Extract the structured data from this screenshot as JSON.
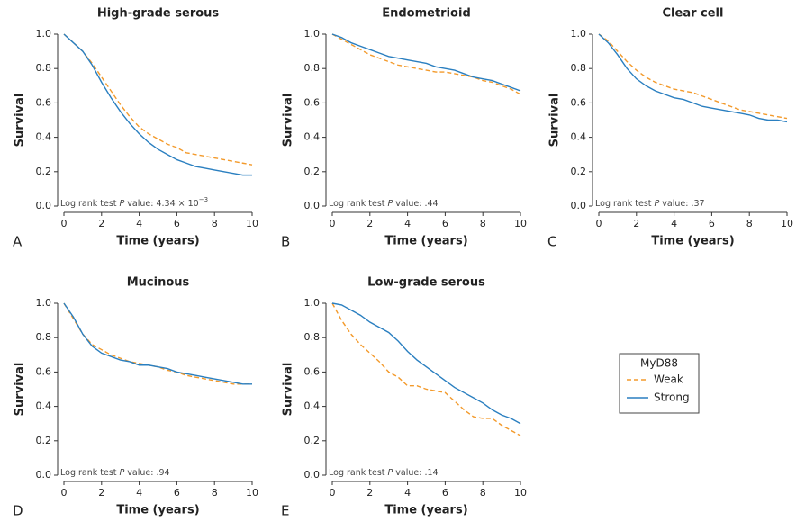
{
  "chart_data": [
    {
      "type": "line",
      "panel": "A",
      "title": "High-grade serous",
      "xlabel": "Time (years)",
      "ylabel": "Survival",
      "annotation": [
        {
          "text": "Log rank test "
        },
        {
          "text": "P",
          "italic": true
        },
        {
          "text": " value: 4.34 × 10"
        },
        {
          "text": "−3",
          "superscript": true
        }
      ],
      "x": [
        0,
        0.5,
        1,
        1.5,
        2,
        2.5,
        3,
        3.5,
        4,
        4.5,
        5,
        5.5,
        6,
        6.5,
        7,
        7.5,
        8,
        8.5,
        9,
        9.5,
        10
      ],
      "series": [
        {
          "name": "Weak",
          "color": "#f39a2b",
          "dash": true,
          "values": [
            1.0,
            0.95,
            0.9,
            0.83,
            0.75,
            0.67,
            0.59,
            0.52,
            0.46,
            0.42,
            0.39,
            0.36,
            0.34,
            0.31,
            0.3,
            0.29,
            0.28,
            0.27,
            0.26,
            0.25,
            0.24
          ]
        },
        {
          "name": "Strong",
          "color": "#2a7fc0",
          "dash": false,
          "values": [
            1.0,
            0.95,
            0.9,
            0.82,
            0.72,
            0.63,
            0.55,
            0.48,
            0.42,
            0.37,
            0.33,
            0.3,
            0.27,
            0.25,
            0.23,
            0.22,
            0.21,
            0.2,
            0.19,
            0.18,
            0.18
          ]
        }
      ],
      "xlim": [
        0,
        10
      ],
      "ylim": [
        0,
        1
      ],
      "xticks": [
        0,
        2,
        4,
        6,
        8,
        10
      ],
      "yticks": [
        {
          "value": 0,
          "label": "0.0"
        },
        0.2,
        0.4,
        0.6,
        0.8,
        {
          "value": 1,
          "label": "1.0"
        }
      ]
    },
    {
      "type": "line",
      "panel": "B",
      "title": "Endometrioid",
      "xlabel": "Time (years)",
      "ylabel": "Survival",
      "annotation": [
        {
          "text": "Log rank test "
        },
        {
          "text": "P",
          "italic": true
        },
        {
          "text": " value: .44"
        }
      ],
      "x": [
        0,
        0.5,
        1,
        1.5,
        2,
        2.5,
        3,
        3.5,
        4,
        4.5,
        5,
        5.5,
        6,
        6.5,
        7,
        7.5,
        8,
        8.5,
        9,
        9.5,
        10
      ],
      "series": [
        {
          "name": "Weak",
          "color": "#f39a2b",
          "dash": true,
          "values": [
            1.0,
            0.97,
            0.94,
            0.91,
            0.88,
            0.86,
            0.84,
            0.82,
            0.81,
            0.8,
            0.79,
            0.78,
            0.78,
            0.77,
            0.76,
            0.75,
            0.73,
            0.72,
            0.7,
            0.68,
            0.65
          ]
        },
        {
          "name": "Strong",
          "color": "#2a7fc0",
          "dash": false,
          "values": [
            1.0,
            0.98,
            0.95,
            0.93,
            0.91,
            0.89,
            0.87,
            0.86,
            0.85,
            0.84,
            0.83,
            0.81,
            0.8,
            0.79,
            0.77,
            0.75,
            0.74,
            0.73,
            0.71,
            0.69,
            0.67
          ]
        }
      ],
      "xlim": [
        0,
        10
      ],
      "ylim": [
        0,
        1
      ],
      "xticks": [
        0,
        2,
        4,
        6,
        8,
        10
      ],
      "yticks": [
        {
          "value": 0,
          "label": "0.0"
        },
        0.2,
        0.4,
        0.6,
        0.8,
        {
          "value": 1,
          "label": "1.0"
        }
      ]
    },
    {
      "type": "line",
      "panel": "C",
      "title": "Clear cell",
      "xlabel": "Time (years)",
      "ylabel": "Survival",
      "annotation": [
        {
          "text": "Log rank test "
        },
        {
          "text": "P",
          "italic": true
        },
        {
          "text": " value: .37"
        }
      ],
      "x": [
        0,
        0.5,
        1,
        1.5,
        2,
        2.5,
        3,
        3.5,
        4,
        4.5,
        5,
        5.5,
        6,
        6.5,
        7,
        7.5,
        8,
        8.5,
        9,
        9.5,
        10
      ],
      "series": [
        {
          "name": "Weak",
          "color": "#f39a2b",
          "dash": true,
          "values": [
            1.0,
            0.96,
            0.9,
            0.84,
            0.79,
            0.75,
            0.72,
            0.7,
            0.68,
            0.67,
            0.66,
            0.64,
            0.62,
            0.6,
            0.58,
            0.56,
            0.55,
            0.54,
            0.53,
            0.52,
            0.51
          ]
        },
        {
          "name": "Strong",
          "color": "#2a7fc0",
          "dash": false,
          "values": [
            1.0,
            0.95,
            0.88,
            0.8,
            0.74,
            0.7,
            0.67,
            0.65,
            0.63,
            0.62,
            0.6,
            0.58,
            0.57,
            0.56,
            0.55,
            0.54,
            0.53,
            0.51,
            0.5,
            0.5,
            0.49
          ]
        }
      ],
      "xlim": [
        0,
        10
      ],
      "ylim": [
        0,
        1
      ],
      "xticks": [
        0,
        2,
        4,
        6,
        8,
        10
      ],
      "yticks": [
        {
          "value": 0,
          "label": "0.0"
        },
        0.2,
        0.4,
        0.6,
        0.8,
        {
          "value": 1,
          "label": "1.0"
        }
      ]
    },
    {
      "type": "line",
      "panel": "D",
      "title": "Mucinous",
      "xlabel": "Time (years)",
      "ylabel": "Survival",
      "annotation": [
        {
          "text": "Log rank test "
        },
        {
          "text": "P",
          "italic": true
        },
        {
          "text": " value: .94"
        }
      ],
      "x": [
        0,
        0.5,
        1,
        1.5,
        2,
        2.5,
        3,
        3.5,
        4,
        4.5,
        5,
        5.5,
        6,
        6.5,
        7,
        7.5,
        8,
        8.5,
        9,
        9.5,
        10
      ],
      "series": [
        {
          "name": "Weak",
          "color": "#f39a2b",
          "dash": true,
          "values": [
            1.0,
            0.91,
            0.82,
            0.76,
            0.73,
            0.7,
            0.68,
            0.66,
            0.65,
            0.64,
            0.63,
            0.61,
            0.6,
            0.58,
            0.57,
            0.56,
            0.55,
            0.54,
            0.53,
            0.53,
            0.53
          ]
        },
        {
          "name": "Strong",
          "color": "#2a7fc0",
          "dash": false,
          "values": [
            1.0,
            0.92,
            0.82,
            0.75,
            0.71,
            0.69,
            0.67,
            0.66,
            0.64,
            0.64,
            0.63,
            0.62,
            0.6,
            0.59,
            0.58,
            0.57,
            0.56,
            0.55,
            0.54,
            0.53,
            0.53
          ]
        }
      ],
      "xlim": [
        0,
        10
      ],
      "ylim": [
        0,
        1
      ],
      "xticks": [
        0,
        2,
        4,
        6,
        8,
        10
      ],
      "yticks": [
        {
          "value": 0,
          "label": "0.0"
        },
        0.2,
        0.4,
        0.6,
        0.8,
        {
          "value": 1,
          "label": "1.0"
        }
      ]
    },
    {
      "type": "line",
      "panel": "E",
      "title": "Low-grade serous",
      "xlabel": "Time (years)",
      "ylabel": "Survival",
      "annotation": [
        {
          "text": "Log rank test "
        },
        {
          "text": "P",
          "italic": true
        },
        {
          "text": " value: .14"
        }
      ],
      "x": [
        0,
        0.5,
        1,
        1.5,
        2,
        2.5,
        3,
        3.5,
        4,
        4.5,
        5,
        5.5,
        6,
        6.5,
        7,
        7.5,
        8,
        8.5,
        9,
        9.5,
        10
      ],
      "series": [
        {
          "name": "Weak",
          "color": "#f39a2b",
          "dash": true,
          "values": [
            1.0,
            0.9,
            0.82,
            0.76,
            0.71,
            0.66,
            0.6,
            0.57,
            0.52,
            0.52,
            0.5,
            0.49,
            0.48,
            0.43,
            0.38,
            0.34,
            0.33,
            0.33,
            0.29,
            0.26,
            0.23
          ]
        },
        {
          "name": "Strong",
          "color": "#2a7fc0",
          "dash": false,
          "values": [
            1.0,
            0.99,
            0.96,
            0.93,
            0.89,
            0.86,
            0.83,
            0.78,
            0.72,
            0.67,
            0.63,
            0.59,
            0.55,
            0.51,
            0.48,
            0.45,
            0.42,
            0.38,
            0.35,
            0.33,
            0.3
          ]
        }
      ],
      "xlim": [
        0,
        10
      ],
      "ylim": [
        0,
        1
      ],
      "xticks": [
        0,
        2,
        4,
        6,
        8,
        10
      ],
      "yticks": [
        {
          "value": 0,
          "label": "0.0"
        },
        0.2,
        0.4,
        0.6,
        0.8,
        {
          "value": 1,
          "label": "1.0"
        }
      ],
      "legend": "right",
      "legend_title": "MyD88"
    }
  ]
}
